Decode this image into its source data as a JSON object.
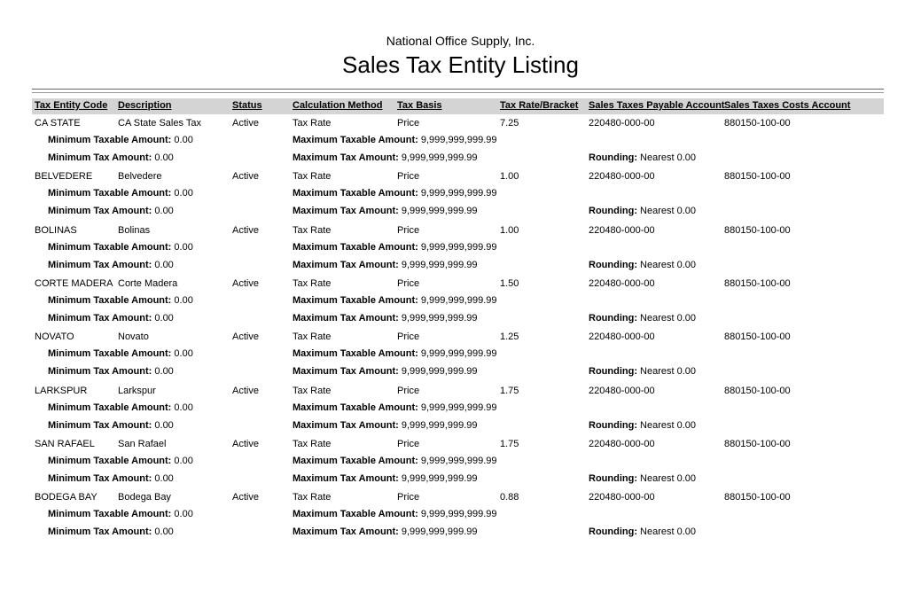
{
  "report": {
    "company": "National Office Supply, Inc.",
    "title": "Sales Tax Entity Listing"
  },
  "columns": [
    "Tax Entity Code",
    "Description",
    "Status",
    "Calculation Method",
    "Tax Basis",
    "Tax Rate/Bracket",
    "Sales Taxes Payable Account",
    "Sales Taxes Costs Account"
  ],
  "labels": {
    "min_taxable": "Minimum Taxable Amount:",
    "max_taxable": "Maximum Taxable Amount:",
    "min_tax": "Minimum Tax Amount:",
    "max_tax": "Maximum Tax Amount:",
    "rounding": "Rounding:"
  },
  "entities": [
    {
      "code": "CA STATE",
      "description": "CA State Sales Tax",
      "status": "Active",
      "method": "Tax Rate",
      "basis": "Price",
      "rate": "7.25",
      "payable": "220480-000-00",
      "costs": "880150-100-00",
      "min_taxable": "0.00",
      "max_taxable": "9,999,999,999.99",
      "min_tax": "0.00",
      "max_tax": "9,999,999,999.99",
      "rounding": "Nearest 0.00"
    },
    {
      "code": "BELVEDERE",
      "description": "Belvedere",
      "status": "Active",
      "method": "Tax Rate",
      "basis": "Price",
      "rate": "1.00",
      "payable": "220480-000-00",
      "costs": "880150-100-00",
      "min_taxable": "0.00",
      "max_taxable": "9,999,999,999.99",
      "min_tax": "0.00",
      "max_tax": "9,999,999,999.99",
      "rounding": "Nearest 0.00"
    },
    {
      "code": "BOLINAS",
      "description": "Bolinas",
      "status": "Active",
      "method": "Tax Rate",
      "basis": "Price",
      "rate": "1.00",
      "payable": "220480-000-00",
      "costs": "880150-100-00",
      "min_taxable": "0.00",
      "max_taxable": "9,999,999,999.99",
      "min_tax": "0.00",
      "max_tax": "9,999,999,999.99",
      "rounding": "Nearest 0.00"
    },
    {
      "code": "CORTE MADERA",
      "description": "Corte Madera",
      "status": "Active",
      "method": "Tax Rate",
      "basis": "Price",
      "rate": "1.50",
      "payable": "220480-000-00",
      "costs": "880150-100-00",
      "min_taxable": "0.00",
      "max_taxable": "9,999,999,999.99",
      "min_tax": "0.00",
      "max_tax": "9,999,999,999.99",
      "rounding": "Nearest 0.00"
    },
    {
      "code": "NOVATO",
      "description": "Novato",
      "status": "Active",
      "method": "Tax Rate",
      "basis": "Price",
      "rate": "1.25",
      "payable": "220480-000-00",
      "costs": "880150-100-00",
      "min_taxable": "0.00",
      "max_taxable": "9,999,999,999.99",
      "min_tax": "0.00",
      "max_tax": "9,999,999,999.99",
      "rounding": "Nearest 0.00"
    },
    {
      "code": "LARKSPUR",
      "description": "Larkspur",
      "status": "Active",
      "method": "Tax Rate",
      "basis": "Price",
      "rate": "1.75",
      "payable": "220480-000-00",
      "costs": "880150-100-00",
      "min_taxable": "0.00",
      "max_taxable": "9,999,999,999.99",
      "min_tax": "0.00",
      "max_tax": "9,999,999,999.99",
      "rounding": "Nearest 0.00"
    },
    {
      "code": "SAN RAFAEL",
      "description": "San Rafael",
      "status": "Active",
      "method": "Tax Rate",
      "basis": "Price",
      "rate": "1.75",
      "payable": "220480-000-00",
      "costs": "880150-100-00",
      "min_taxable": "0.00",
      "max_taxable": "9,999,999,999.99",
      "min_tax": "0.00",
      "max_tax": "9,999,999,999.99",
      "rounding": "Nearest 0.00"
    },
    {
      "code": "BODEGA BAY",
      "description": "Bodega Bay",
      "status": "Active",
      "method": "Tax Rate",
      "basis": "Price",
      "rate": "0.88",
      "payable": "220480-000-00",
      "costs": "880150-100-00",
      "min_taxable": "0.00",
      "max_taxable": "9,999,999,999.99",
      "min_tax": "0.00",
      "max_tax": "9,999,999,999.99",
      "rounding": "Nearest 0.00"
    }
  ]
}
